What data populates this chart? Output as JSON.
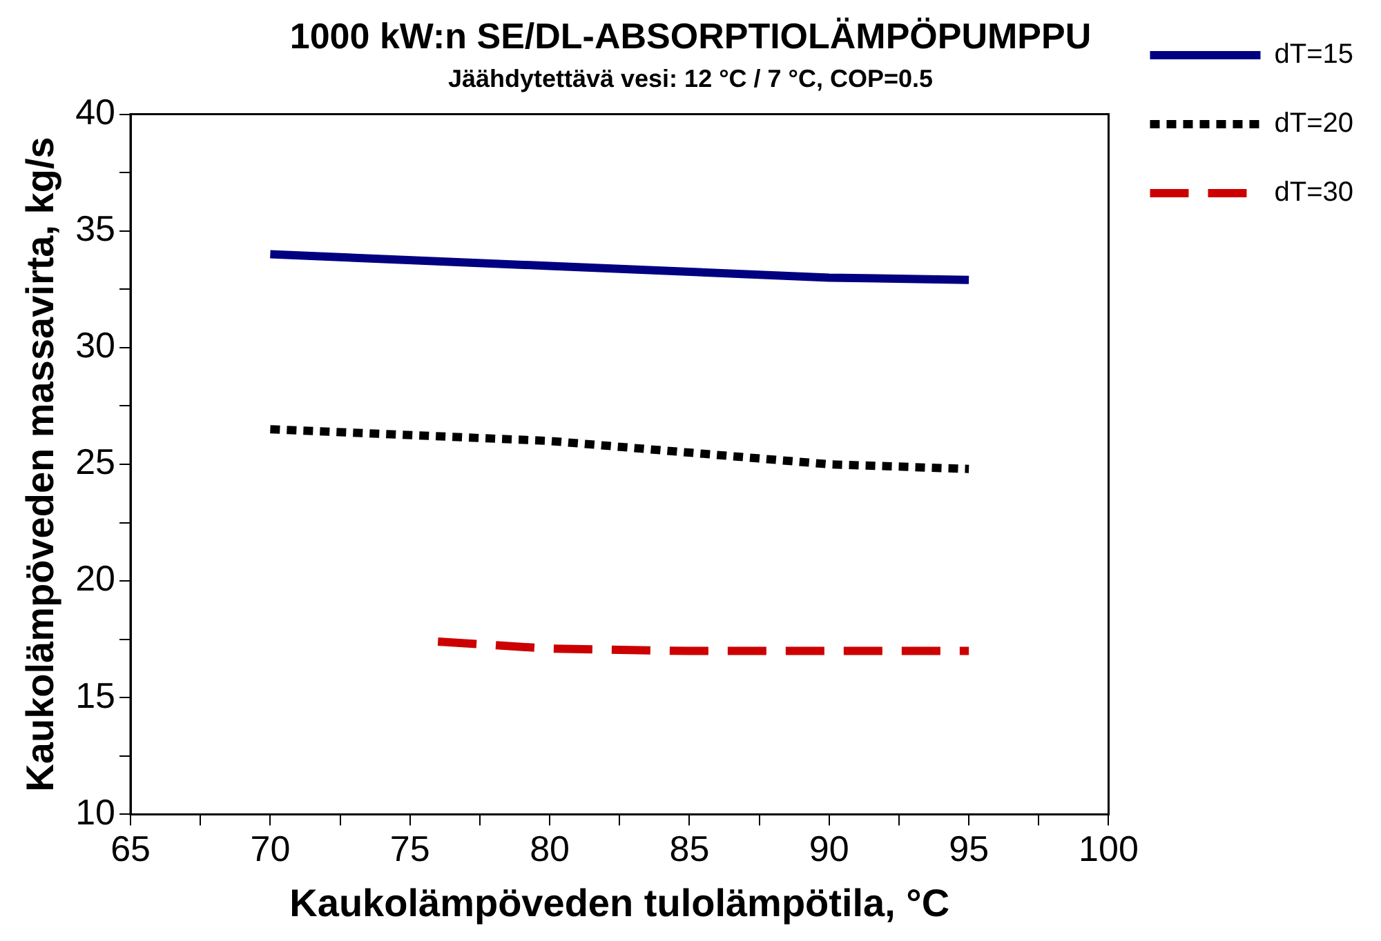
{
  "chart_data": {
    "type": "line",
    "title": "1000 kW:n SE/DL-ABSORPTIOLÄMPÖPUMPPU",
    "subtitle": "Jäähdytettävä vesi: 12 °C / 7 °C, COP=0.5",
    "xlabel": "Kaukolämpöveden tulolämpötila, °C",
    "ylabel": "Kaukolämpöveden massavirta, kg/s",
    "xlim": [
      65,
      100
    ],
    "xticks": [
      65,
      {
        "value": 67.5,
        "label": null
      },
      70,
      {
        "value": 72.5,
        "label": null
      },
      75,
      {
        "value": 77.5,
        "label": null
      },
      80,
      {
        "value": 82.5,
        "label": null
      },
      85,
      {
        "value": 87.5,
        "label": null
      },
      90,
      {
        "value": 92.5,
        "label": null
      },
      95,
      {
        "value": 97.5,
        "label": null
      },
      100
    ],
    "ylim": [
      10,
      40
    ],
    "yticks": [
      10,
      {
        "value": 12.5,
        "label": null
      },
      15,
      {
        "value": 17.5,
        "label": null
      },
      20,
      {
        "value": 22.5,
        "label": null
      },
      25,
      {
        "value": 27.5,
        "label": null
      },
      30,
      {
        "value": 32.5,
        "label": null
      },
      35,
      {
        "value": 37.5,
        "label": null
      },
      40
    ],
    "grid": false,
    "legend": "right",
    "marker": "none",
    "series": [
      {
        "name": "dT=15",
        "color": "#000080",
        "line_style": "solid",
        "x": [
          70,
          80,
          90,
          95
        ],
        "values": [
          34.0,
          33.5,
          33.0,
          32.9
        ]
      },
      {
        "name": "dT=20",
        "color": "#000000",
        "line_style": "dotted",
        "x": [
          70,
          80,
          85,
          90,
          95
        ],
        "values": [
          26.5,
          26.0,
          25.5,
          25.0,
          24.8
        ]
      },
      {
        "name": "dT=30",
        "color": "#cc0000",
        "line_style": "dashed",
        "x": [
          76,
          80,
          85,
          90,
          95
        ],
        "values": [
          17.4,
          17.1,
          17.0,
          17.0,
          17.0
        ]
      }
    ]
  }
}
